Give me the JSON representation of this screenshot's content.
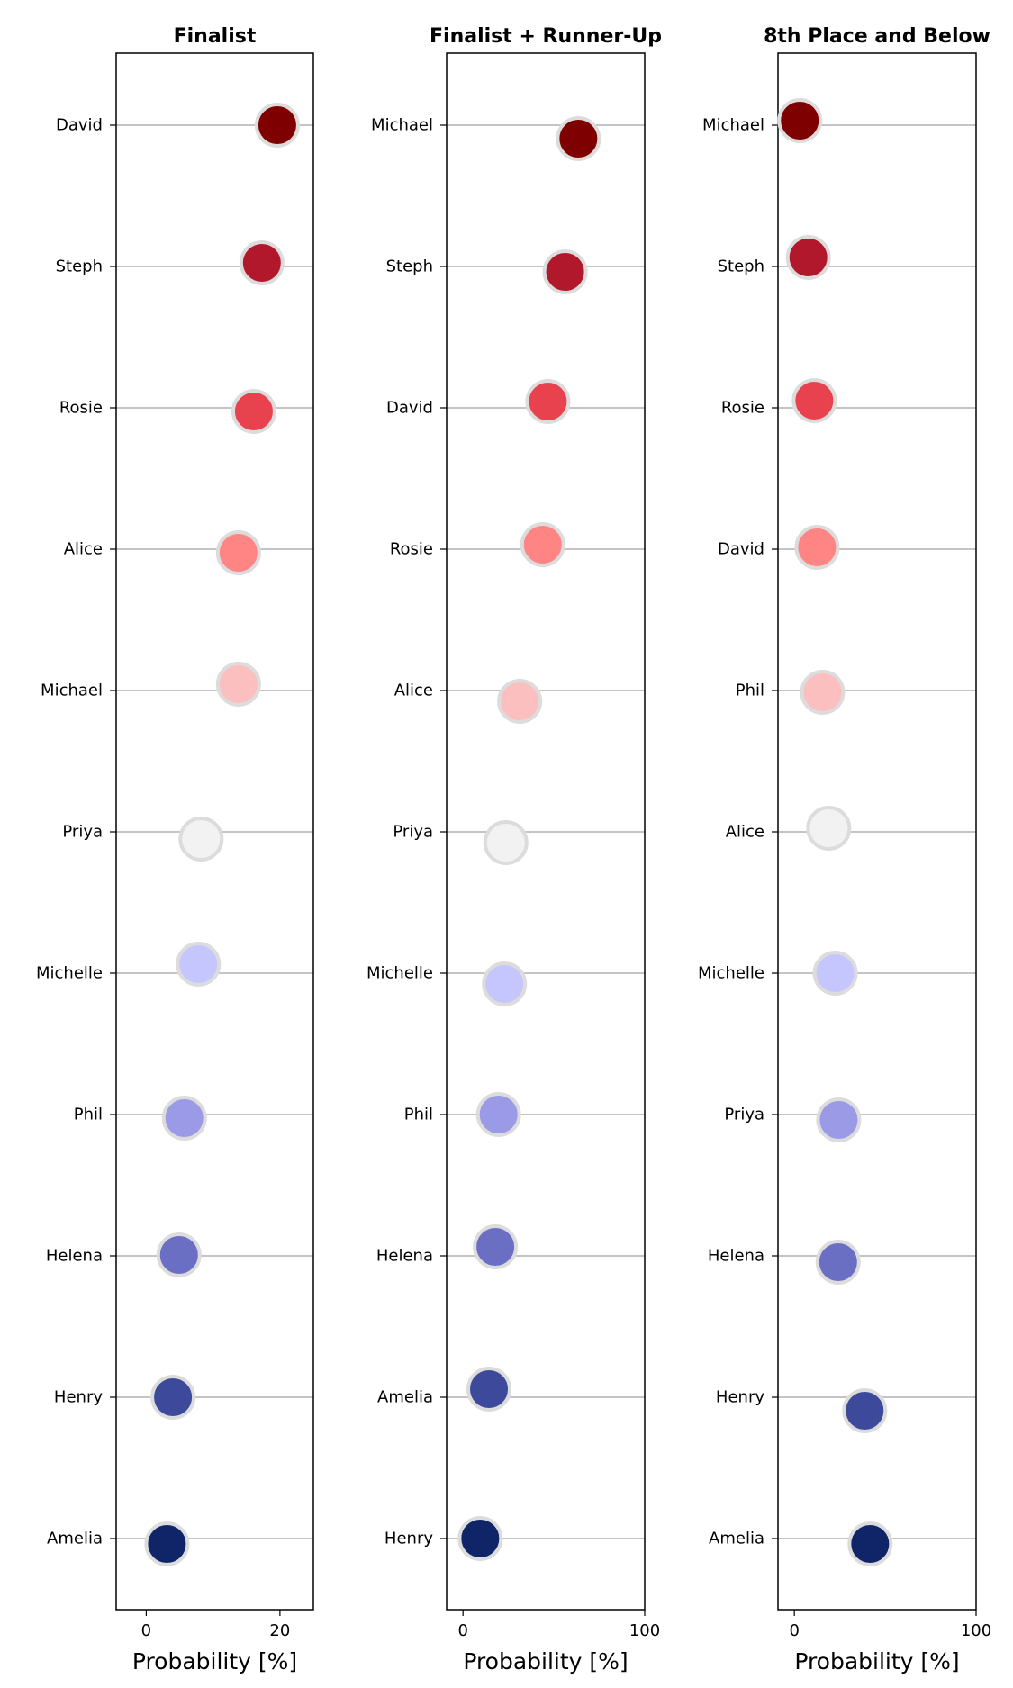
{
  "chart_data": [
    {
      "type": "scatter",
      "title": "Finalist",
      "xlabel": "Probability [%]",
      "xlim": [
        -4.5,
        25
      ],
      "xticks": [
        0,
        20
      ],
      "grid": "horizontal",
      "categories": [
        "David",
        "Steph",
        "Rosie",
        "Alice",
        "Michael",
        "Priya",
        "Michelle",
        "Phil",
        "Helena",
        "Henry",
        "Amelia"
      ],
      "values": [
        19.6,
        17.3,
        16.1,
        13.8,
        13.8,
        8.2,
        7.8,
        5.7,
        4.9,
        4.0,
        3.1
      ],
      "colors": [
        "#7f0000",
        "#b2182b",
        "#e8424f",
        "#ff8484",
        "#fcbfbf",
        "#f2f2f2",
        "#c6c6ff",
        "#9a9ae6",
        "#6b6fc4",
        "#3d4a9c",
        "#0f2568"
      ]
    },
    {
      "type": "scatter",
      "title": "Finalist + Runner-Up",
      "xlabel": "Probability [%]",
      "xlim": [
        -9,
        100
      ],
      "xticks": [
        0,
        100
      ],
      "grid": "horizontal",
      "categories": [
        "Michael",
        "Steph",
        "David",
        "Rosie",
        "Alice",
        "Priya",
        "Michelle",
        "Phil",
        "Helena",
        "Amelia",
        "Henry"
      ],
      "values": [
        63.5,
        56.2,
        46.7,
        43.9,
        31.2,
        23.6,
        22.8,
        19.6,
        17.8,
        14.3,
        9.5
      ],
      "colors": [
        "#7f0000",
        "#b2182b",
        "#e8424f",
        "#ff8484",
        "#fcbfbf",
        "#f2f2f2",
        "#c6c6ff",
        "#9a9ae6",
        "#6b6fc4",
        "#3d4a9c",
        "#0f2568"
      ]
    },
    {
      "type": "scatter",
      "title": "8th Place and Below",
      "xlabel": "Probability [%]",
      "xlim": [
        -9,
        100
      ],
      "xticks": [
        0,
        100
      ],
      "grid": "horizontal",
      "categories": [
        "Michael",
        "Steph",
        "Rosie",
        "David",
        "Phil",
        "Alice",
        "Michelle",
        "Priya",
        "Helena",
        "Henry",
        "Amelia"
      ],
      "values": [
        3.0,
        7.7,
        11.0,
        12.5,
        15.5,
        18.9,
        22.5,
        24.4,
        24.1,
        38.7,
        41.7
      ],
      "colors": [
        "#7f0000",
        "#b2182b",
        "#e8424f",
        "#ff8484",
        "#fcbfbf",
        "#f2f2f2",
        "#c6c6ff",
        "#9a9ae6",
        "#6b6fc4",
        "#3d4a9c",
        "#0f2568"
      ]
    }
  ]
}
